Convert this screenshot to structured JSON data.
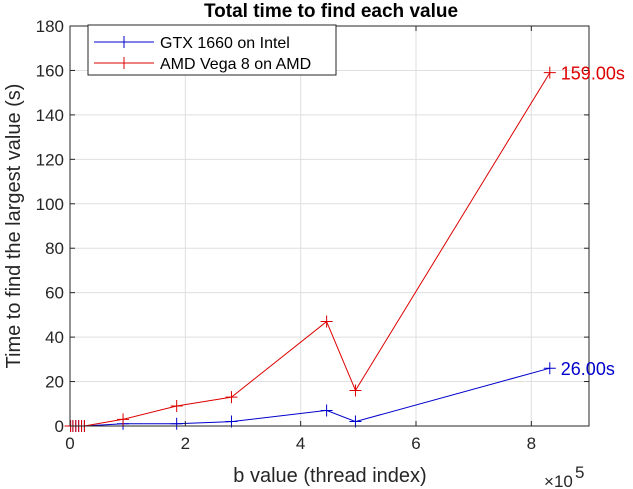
{
  "chart_data": {
    "type": "line",
    "title": "Total time to find each value",
    "xlabel": "b value (thread index)",
    "ylabel": "Time to find the largest value (s)",
    "x_exponent_base": "10",
    "x_exponent_power": "5",
    "xlim": [
      0,
      900000
    ],
    "ylim": [
      0,
      180
    ],
    "x_ticks": [
      0,
      200000,
      400000,
      600000,
      800000
    ],
    "x_tick_labels": [
      "0",
      "2",
      "4",
      "6",
      "8"
    ],
    "y_ticks": [
      0,
      20,
      40,
      60,
      80,
      100,
      120,
      140,
      160,
      180
    ],
    "y_tick_labels": [
      "0",
      "20",
      "40",
      "60",
      "80",
      "100",
      "120",
      "140",
      "160",
      "180"
    ],
    "grid": true,
    "legend_position": "top-left",
    "series": [
      {
        "name": "GTX 1660 on Intel",
        "color": "#0000cc",
        "x": [
          1000,
          5000,
          10000,
          15000,
          20000,
          25000,
          92000,
          185000,
          280000,
          445000,
          495000,
          832000
        ],
        "y": [
          0,
          0,
          0,
          0,
          0,
          0,
          1,
          1,
          2,
          7,
          2,
          26
        ],
        "end_label": "26.00s"
      },
      {
        "name": "AMD Vega 8 on AMD",
        "color": "#dd0000",
        "x": [
          1000,
          5000,
          10000,
          15000,
          20000,
          25000,
          92000,
          185000,
          280000,
          445000,
          495000,
          832000
        ],
        "y": [
          0,
          0,
          0,
          0,
          0,
          0,
          3,
          9,
          13,
          47,
          16,
          159
        ],
        "end_label": "159.00s"
      }
    ]
  }
}
